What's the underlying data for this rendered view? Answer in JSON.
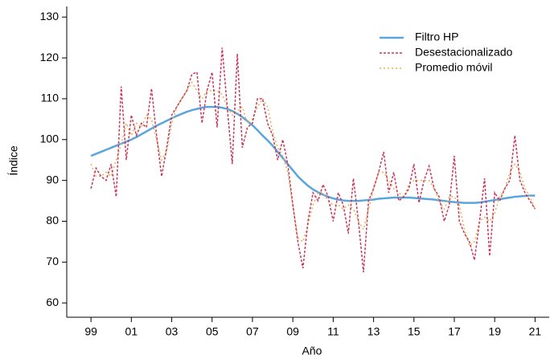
{
  "chart_data": {
    "type": "line",
    "x_label": "Año",
    "y_label": "Índice",
    "legend": "top-right",
    "xlim": [
      1997.8,
      2021.7
    ],
    "ylim": [
      56.5,
      132.6
    ],
    "xticks": [
      {
        "value": 1999,
        "label": "99"
      },
      {
        "value": 2001,
        "label": "01"
      },
      {
        "value": 2003,
        "label": "03"
      },
      {
        "value": 2005,
        "label": "05"
      },
      {
        "value": 2007,
        "label": "07"
      },
      {
        "value": 2009,
        "label": "09"
      },
      {
        "value": 2011,
        "label": "11"
      },
      {
        "value": 2013,
        "label": "13"
      },
      {
        "value": 2015,
        "label": "15"
      },
      {
        "value": 2017,
        "label": "17"
      },
      {
        "value": 2019,
        "label": "19"
      },
      {
        "value": 2021,
        "label": "21"
      }
    ],
    "yticks": [
      60,
      70,
      80,
      90,
      100,
      110,
      120,
      130
    ],
    "x": [
      1999,
      1999.25,
      1999.5,
      1999.75,
      2000,
      2000.25,
      2000.5,
      2000.75,
      2001,
      2001.25,
      2001.5,
      2001.75,
      2002,
      2002.25,
      2002.5,
      2002.75,
      2003,
      2003.25,
      2003.5,
      2003.75,
      2004,
      2004.25,
      2004.5,
      2004.75,
      2005,
      2005.25,
      2005.5,
      2005.75,
      2006,
      2006.25,
      2006.5,
      2006.75,
      2007,
      2007.25,
      2007.5,
      2007.75,
      2008,
      2008.25,
      2008.5,
      2008.75,
      2009,
      2009.25,
      2009.5,
      2009.75,
      2010,
      2010.25,
      2010.5,
      2010.75,
      2011,
      2011.25,
      2011.5,
      2011.75,
      2012,
      2012.25,
      2012.5,
      2012.75,
      2013,
      2013.25,
      2013.5,
      2013.75,
      2014,
      2014.25,
      2014.5,
      2014.75,
      2015,
      2015.25,
      2015.5,
      2015.75,
      2016,
      2016.25,
      2016.5,
      2016.75,
      2017,
      2017.25,
      2017.5,
      2017.75,
      2018,
      2018.25,
      2018.5,
      2018.75,
      2019,
      2019.25,
      2019.5,
      2019.75,
      2020,
      2020.25,
      2020.5,
      2020.75,
      2021
    ],
    "series": [
      {
        "name": "Filtro HP",
        "color": "#5aa5dc",
        "style": "solid",
        "values": [
          96,
          96.5,
          97,
          97.5,
          98,
          98.5,
          99,
          99.5,
          100,
          100.6,
          101.3,
          102,
          102.7,
          103.4,
          104,
          104.6,
          105.2,
          105.8,
          106.3,
          106.8,
          107.2,
          107.5,
          107.8,
          108,
          108,
          108,
          107.8,
          107.5,
          107,
          106.3,
          105.5,
          104.5,
          103.5,
          102.3,
          101,
          99.8,
          98.5,
          97,
          95.5,
          94,
          92.5,
          91,
          89.8,
          88.7,
          87.8,
          87.1,
          86.5,
          86,
          85.6,
          85.3,
          85.1,
          85,
          85,
          85,
          85.1,
          85.2,
          85.3,
          85.5,
          85.6,
          85.7,
          85.8,
          85.8,
          85.8,
          85.8,
          85.7,
          85.6,
          85.5,
          85.4,
          85.3,
          85.1,
          85,
          84.8,
          84.7,
          84.6,
          84.5,
          84.5,
          84.5,
          84.6,
          84.8,
          85,
          85.2,
          85.4,
          85.6,
          85.8,
          86,
          86.1,
          86.2,
          86.3,
          86.3
        ]
      },
      {
        "name": "Desestacionalizado",
        "color": "#c8365a",
        "style": "dashed",
        "values": [
          88,
          93,
          91,
          90,
          94,
          86,
          113,
          95,
          106,
          101,
          104,
          103,
          112.5,
          101,
          91,
          98,
          106,
          108,
          110,
          112,
          116,
          116.5,
          104,
          112,
          116.5,
          103,
          122.5,
          108,
          94,
          121,
          98,
          103,
          104,
          110,
          110,
          104,
          101,
          95,
          100,
          94,
          84,
          75,
          68.5,
          80,
          87,
          85,
          89,
          86,
          80,
          87,
          84,
          77,
          90.5,
          80,
          67.5,
          85,
          88,
          92,
          97,
          87,
          92,
          85,
          86,
          88,
          94,
          84.5,
          90,
          93.5,
          88,
          86,
          80,
          84,
          96,
          80,
          77,
          75,
          70.5,
          80,
          90.5,
          71.5,
          87,
          85,
          88,
          90,
          101,
          90,
          87,
          85,
          83
        ]
      },
      {
        "name": "Promedio móvil",
        "color": "#e8b04a",
        "style": "dotted",
        "values": [
          94,
          91,
          91,
          92,
          91,
          95,
          99,
          104,
          101,
          104,
          103,
          106,
          105,
          100,
          95,
          97,
          104,
          108,
          110,
          112,
          114,
          112,
          110,
          112,
          112,
          112,
          111,
          108,
          106,
          107,
          108,
          104,
          105,
          108,
          110,
          108,
          102,
          98,
          96,
          92,
          84,
          76,
          75,
          79,
          84,
          87,
          87,
          85,
          84,
          84,
          83,
          84,
          83,
          80,
          78,
          83,
          88,
          92,
          92,
          90,
          88,
          87,
          86,
          89,
          90,
          90,
          90,
          90,
          88,
          85,
          83,
          86,
          86,
          84,
          78,
          74,
          75,
          80,
          81,
          80,
          82,
          86,
          88,
          92,
          94,
          92,
          88,
          86,
          83
        ]
      }
    ]
  }
}
